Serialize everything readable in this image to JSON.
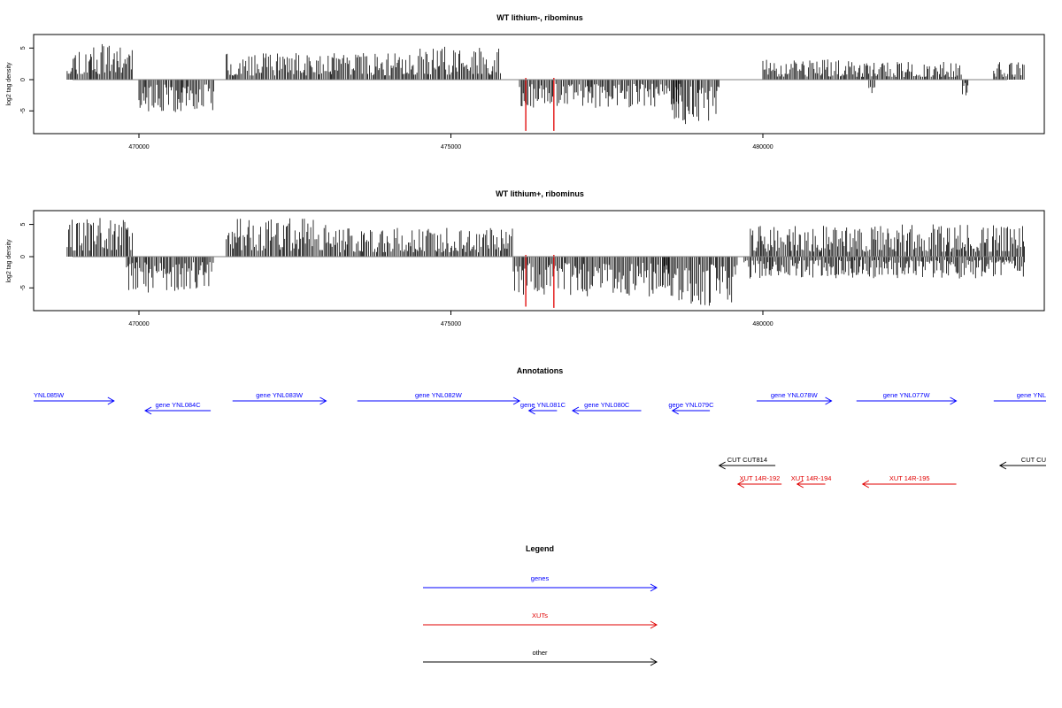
{
  "chart_data": [
    {
      "type": "bar",
      "title": "WT lithium-, ribominus",
      "ylabel": "log2 tag density",
      "xlim": [
        468200,
        484600
      ],
      "ylim": [
        -8.5,
        7
      ],
      "x_ticks": [
        470000,
        475000,
        480000
      ],
      "y_ticks": [
        5,
        0,
        -5
      ],
      "grid": false,
      "profile": {
        "plus_blocks": [
          {
            "from": 468850,
            "to": 469900,
            "max": 5.8
          },
          {
            "from": 471400,
            "to": 474300,
            "max": 4.2
          },
          {
            "from": 474300,
            "to": 475800,
            "max": 5.2
          },
          {
            "from": 480000,
            "to": 481400,
            "max": 3.2
          },
          {
            "from": 481400,
            "to": 483200,
            "max": 2.8
          },
          {
            "from": 483700,
            "to": 484200,
            "max": 2.8
          }
        ],
        "minus_blocks": [
          {
            "from": 470000,
            "to": 471200,
            "max": 5.2
          },
          {
            "from": 476100,
            "to": 478700,
            "max": 4.5
          },
          {
            "from": 478550,
            "to": 479300,
            "max": 7.2
          },
          {
            "from": 481700,
            "to": 481800,
            "max": 2.5
          },
          {
            "from": 483200,
            "to": 483300,
            "max": 2.5
          }
        ],
        "highlight_points": [
          {
            "x": 476200,
            "y": -8.2
          },
          {
            "x": 476650,
            "y": -8.2
          }
        ]
      }
    },
    {
      "type": "bar",
      "title": "WT lithium+, ribominus",
      "ylabel": "log2 tag density",
      "xlim": [
        468200,
        484600
      ],
      "ylim": [
        -8.5,
        7
      ],
      "x_ticks": [
        470000,
        475000,
        480000
      ],
      "y_ticks": [
        5,
        0,
        -5
      ],
      "grid": false,
      "profile": {
        "plus_blocks": [
          {
            "from": 468850,
            "to": 469900,
            "max": 6.2
          },
          {
            "from": 471400,
            "to": 473000,
            "max": 6.0
          },
          {
            "from": 473000,
            "to": 476000,
            "max": 4.5
          },
          {
            "from": 479800,
            "to": 484200,
            "max": 5.0
          }
        ],
        "minus_blocks": [
          {
            "from": 469800,
            "to": 471200,
            "max": 5.8
          },
          {
            "from": 476000,
            "to": 478500,
            "max": 6.5
          },
          {
            "from": 478400,
            "to": 479600,
            "max": 8.0
          },
          {
            "from": 479700,
            "to": 484200,
            "max": 3.5
          }
        ],
        "highlight_points": [
          {
            "x": 476200,
            "y": -8.0
          },
          {
            "x": 476650,
            "y": -8.2
          }
        ]
      }
    }
  ],
  "annotations": {
    "title": "Annotations",
    "features": [
      {
        "label": "YNL085W",
        "category": "gene",
        "strand": "+",
        "start": 468200,
        "end": 469600,
        "row": 0
      },
      {
        "label": "gene YNL084C",
        "category": "gene",
        "strand": "-",
        "start": 470100,
        "end": 471150,
        "row": 1
      },
      {
        "label": "gene YNL083W",
        "category": "gene",
        "strand": "+",
        "start": 471500,
        "end": 473000,
        "row": 0
      },
      {
        "label": "gene YNL082W",
        "category": "gene",
        "strand": "+",
        "start": 473500,
        "end": 476100,
        "row": 0
      },
      {
        "label": "gene YNL081C",
        "category": "gene",
        "strand": "-",
        "start": 476250,
        "end": 476700,
        "row": 1
      },
      {
        "label": "gene YNL080C",
        "category": "gene",
        "strand": "-",
        "start": 476950,
        "end": 478050,
        "row": 1
      },
      {
        "label": "gene YNL079C",
        "category": "gene",
        "strand": "-",
        "start": 478550,
        "end": 479150,
        "row": 1
      },
      {
        "label": "gene YNL078W",
        "category": "gene",
        "strand": "+",
        "start": 479900,
        "end": 481100,
        "row": 0
      },
      {
        "label": "gene YNL077W",
        "category": "gene",
        "strand": "+",
        "start": 481500,
        "end": 483100,
        "row": 0
      },
      {
        "label": "gene YNL",
        "category": "gene",
        "strand": "+",
        "start": 483700,
        "end": 484600,
        "row": 0
      },
      {
        "label": "CUT CUT814",
        "category": "other",
        "strand": "-",
        "start": 479300,
        "end": 480200,
        "row": 2
      },
      {
        "label": "CUT CU",
        "category": "other",
        "strand": "-",
        "start": 483800,
        "end": 484600,
        "row": 2
      },
      {
        "label": "XUT 14R-192",
        "category": "XUT",
        "strand": "-",
        "start": 479600,
        "end": 480300,
        "row": 3
      },
      {
        "label": "XUT 14R-194",
        "category": "XUT",
        "strand": "-",
        "start": 480550,
        "end": 481000,
        "row": 3
      },
      {
        "label": "XUT 14R-195",
        "category": "XUT",
        "strand": "-",
        "start": 481600,
        "end": 483100,
        "row": 3
      }
    ]
  },
  "legend": {
    "title": "Legend",
    "items": [
      {
        "label": "genes",
        "color": "#0000ff"
      },
      {
        "label": "XUTs",
        "color": "#e00000"
      },
      {
        "label": "other",
        "color": "#000000"
      }
    ]
  },
  "colors": {
    "gene": "#0000ff",
    "XUT": "#e00000",
    "other": "#000000",
    "signal": "#000000",
    "highlight": "#e00000",
    "baseline": "#808080"
  }
}
